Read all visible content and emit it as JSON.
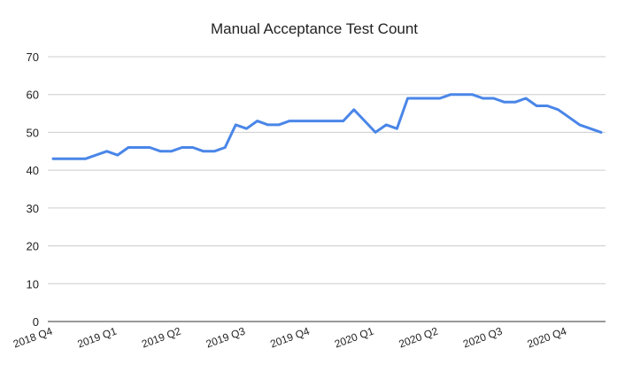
{
  "chart_data": {
    "type": "line",
    "title": "Manual Acceptance Test Count",
    "xlabel": "",
    "ylabel": "",
    "ylim": [
      0,
      70
    ],
    "y_ticks": [
      "0",
      "10",
      "20",
      "30",
      "40",
      "50",
      "60",
      "70"
    ],
    "x_tick_labels": [
      "2018 Q4",
      "2019 Q1",
      "2019 Q2",
      "2019 Q3",
      "2019 Q4",
      "2020 Q1",
      "2020 Q2",
      "2020 Q3",
      "2020 Q4"
    ],
    "grid": true,
    "legend": "none",
    "colors": {
      "line": "#4a86e8",
      "grid": "#cccccc",
      "axis": "#333333",
      "text": "#222222"
    },
    "series": [
      {
        "values": [
          43,
          43,
          43,
          43,
          44,
          45,
          44,
          46,
          46,
          46,
          45,
          45,
          46,
          46,
          45,
          45,
          46,
          52,
          51,
          53,
          52,
          52,
          53,
          53,
          53,
          53,
          53,
          53,
          56,
          53,
          50,
          52,
          51,
          59,
          59,
          59,
          59,
          60,
          60,
          60,
          59,
          59,
          58,
          58,
          59,
          57,
          57,
          56,
          54,
          52,
          51,
          50
        ]
      }
    ]
  }
}
